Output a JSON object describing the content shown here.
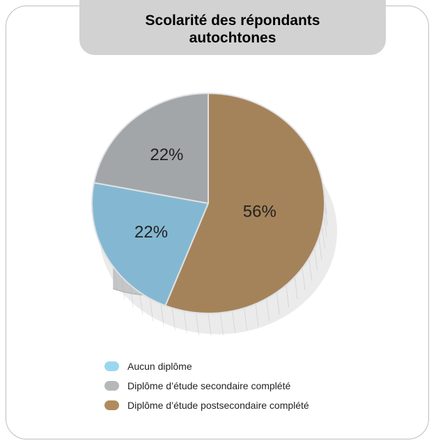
{
  "title": "Scolarité des répondants\nautochtones",
  "colors": {
    "frame_border": "#bdbdbd",
    "title_bg": "#d2d2d2",
    "side": "#c4c6c8",
    "side_dark": "#a9abae",
    "edge": "#dfe1e3"
  },
  "chart_data": {
    "type": "pie",
    "title": "Scolarité des répondants autochtones",
    "slices": [
      {
        "label": "Aucun diplôme",
        "value": 22,
        "display": "22%",
        "color": "#84b8d2",
        "legend_color": "#9ad7ef"
      },
      {
        "label": "Diplôme d’étude secondaire complété",
        "value": 22,
        "display": "22%",
        "color": "#a3a6a9",
        "legend_color": "#b5b8bb"
      },
      {
        "label": "Diplôme d’étude postsecondaire complété",
        "value": 56,
        "display": "56%",
        "color": "#a5835a",
        "legend_color": "#b08b5e"
      }
    ],
    "legend_placement": "bottom-left"
  }
}
